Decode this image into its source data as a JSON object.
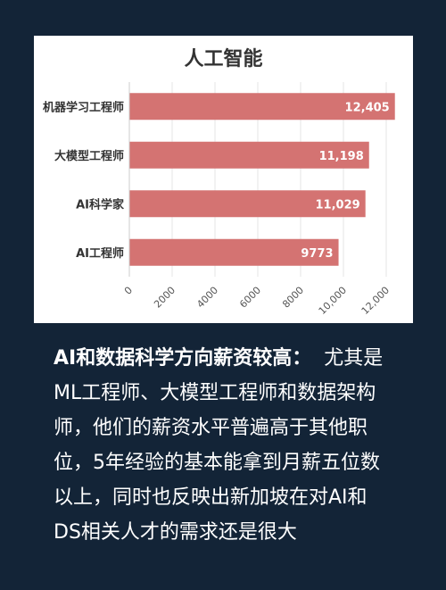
{
  "chart_data": {
    "type": "bar",
    "orientation": "horizontal",
    "title": "人工智能",
    "categories": [
      "机器学习工程师",
      "大模型工程师",
      "AI科学家",
      "AI工程师"
    ],
    "values": [
      12405,
      11198,
      11029,
      9773
    ],
    "value_labels": [
      "12,405",
      "11,198",
      "11,029",
      "9773"
    ],
    "xlim": [
      0,
      12000
    ],
    "x_ticks": [
      0,
      2000,
      4000,
      6000,
      8000,
      10000,
      12000
    ],
    "x_tick_labels": [
      "0",
      "2000",
      "4000",
      "6000",
      "8000",
      "10,000",
      "12,000"
    ],
    "xlabel": "",
    "ylabel": "",
    "grid": true,
    "bar_color": "#d47372"
  },
  "caption": {
    "lead": "AI和数据科学方向薪资较高：",
    "body": "尤其是ML工程师、大模型工程师和数据架构师，他们的薪资水平普遍高于其他职位，5年经验的基本能拿到月薪五位数以上，同时也反映出新加坡在对AI和DS相关人才的需求还是很大"
  },
  "colors": {
    "background": "#132437",
    "card": "#ffffff"
  }
}
